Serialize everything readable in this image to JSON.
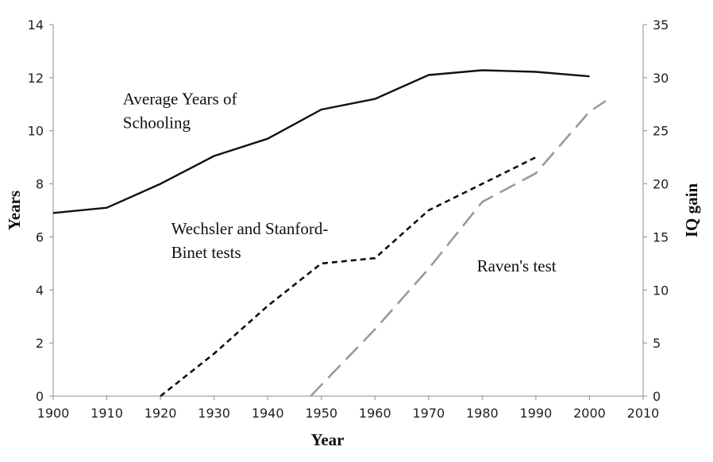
{
  "chart_data": {
    "type": "line",
    "xlabel": "Year",
    "ylabel": "Years",
    "y2label": "IQ gain",
    "xlim": [
      1900,
      2010
    ],
    "xticks": [
      1900,
      1910,
      1920,
      1930,
      1940,
      1950,
      1960,
      1970,
      1980,
      1990,
      2000,
      2010
    ],
    "ylim": [
      0,
      14
    ],
    "yticks": [
      0,
      2,
      4,
      6,
      8,
      10,
      12,
      14
    ],
    "y2lim": [
      0,
      35
    ],
    "y2ticks": [
      0,
      5,
      10,
      15,
      20,
      25,
      30,
      35
    ],
    "grid": false,
    "legend": "none",
    "series": [
      {
        "name": "Average Years of Schooling",
        "axis": "left",
        "style": "solid",
        "color": "#111111",
        "points": [
          [
            1900,
            6.9
          ],
          [
            1910,
            7.1
          ],
          [
            1920,
            8.0
          ],
          [
            1930,
            9.05
          ],
          [
            1940,
            9.7
          ],
          [
            1950,
            10.8
          ],
          [
            1960,
            11.2
          ],
          [
            1970,
            12.1
          ],
          [
            1980,
            12.28
          ],
          [
            1990,
            12.22
          ],
          [
            2000,
            12.05
          ]
        ]
      },
      {
        "name": "Wechsler and Stanford-Binet tests",
        "axis": "right",
        "style": "short-dash",
        "color": "#111111",
        "points": [
          [
            1920,
            0
          ],
          [
            1930,
            4
          ],
          [
            1940,
            8.5
          ],
          [
            1950,
            12.5
          ],
          [
            1960,
            13
          ],
          [
            1970,
            17.5
          ],
          [
            1980,
            20
          ],
          [
            1990,
            22.5
          ]
        ]
      },
      {
        "name": "Raven's test",
        "axis": "right",
        "style": "long-dash",
        "color": "#999999",
        "points": [
          [
            1948,
            0
          ],
          [
            1960,
            6.3
          ],
          [
            1970,
            12
          ],
          [
            1980,
            18.3
          ],
          [
            1990,
            21
          ],
          [
            2000,
            26.8
          ],
          [
            2003,
            27.8
          ]
        ]
      }
    ],
    "annotations": [
      {
        "lines": [
          "Average Years of",
          "Schooling"
        ],
        "at": [
          1913,
          11.0
        ]
      },
      {
        "lines": [
          "Wechsler and Stanford-",
          "Binet tests"
        ],
        "at": [
          1922,
          6.1
        ]
      },
      {
        "lines": [
          "Raven's test"
        ],
        "at": [
          1979,
          4.7
        ]
      }
    ]
  }
}
